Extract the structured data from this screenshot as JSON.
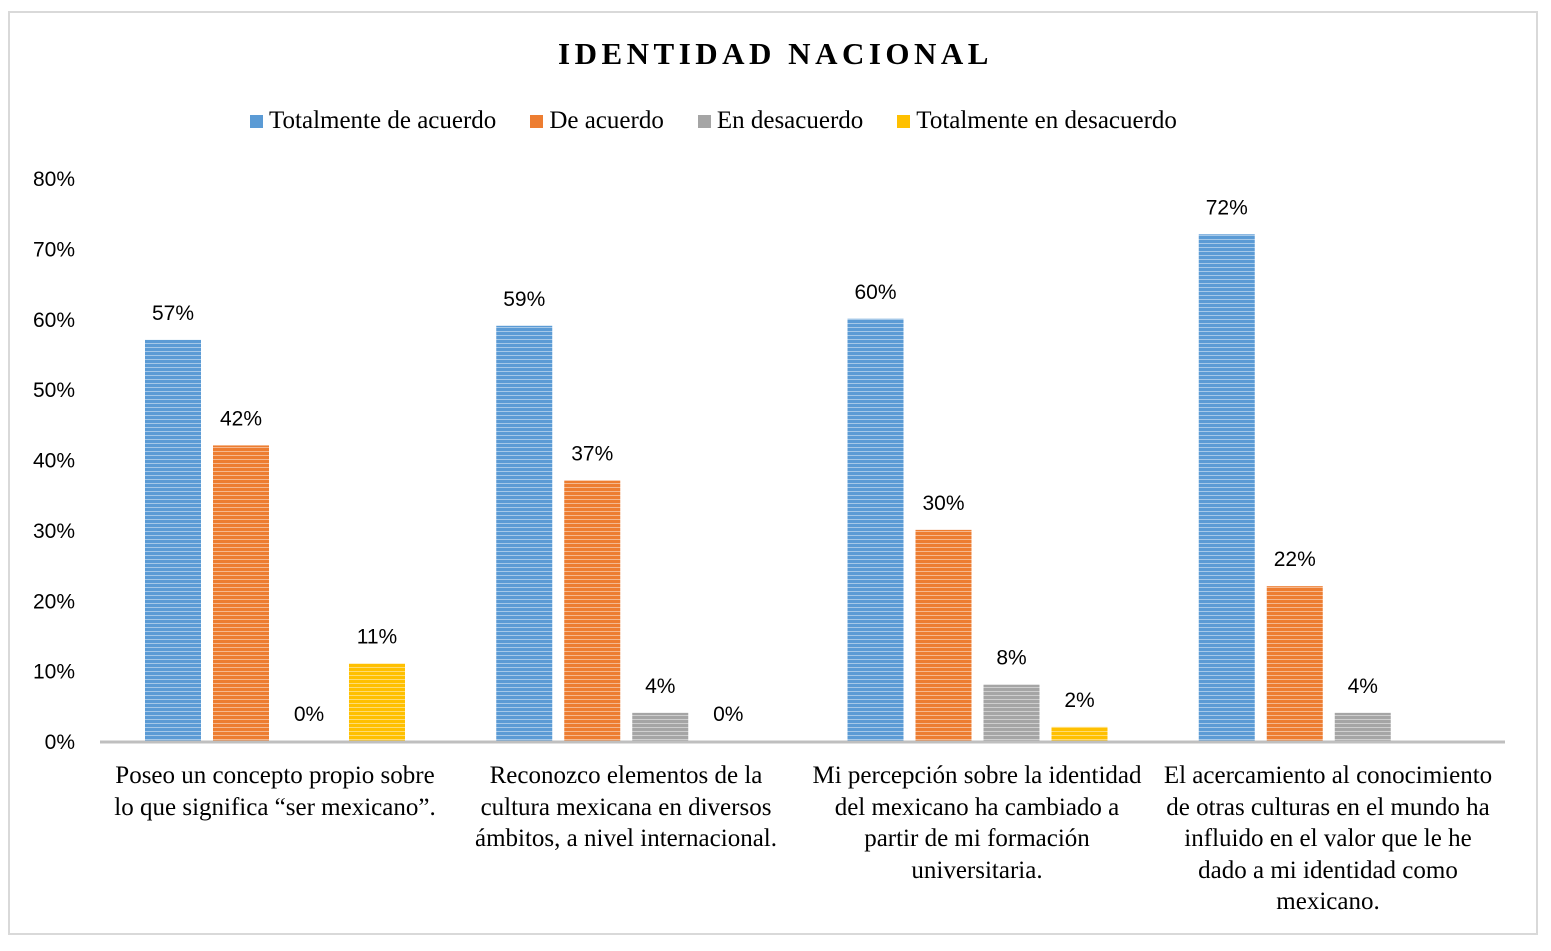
{
  "chart_data": {
    "type": "bar",
    "title": "IDENTIDAD NACIONAL",
    "categories": [
      "Poseo un concepto propio sobre lo que significa “ser mexicano”.",
      "Reconozco elementos de la cultura mexicana en diversos ámbitos, a nivel internacional.",
      "Mi percepción sobre la identidad del mexicano ha cambiado a partir de mi formación universitaria.",
      "El acercamiento al conocimiento de otras culturas en el mundo ha influido en el valor que le he dado a mi identidad como mexicano."
    ],
    "series": [
      {
        "name": "Totalmente de acuerdo",
        "color": "#5b9bd5",
        "values": [
          57,
          59,
          60,
          72
        ],
        "labels": [
          "57%",
          "59%",
          "60%",
          "72%"
        ]
      },
      {
        "name": "De acuerdo",
        "color": "#ed7d31",
        "values": [
          42,
          37,
          30,
          22
        ],
        "labels": [
          "42%",
          "37%",
          "30%",
          "22%"
        ]
      },
      {
        "name": "En desacuerdo",
        "color": "#a5a5a5",
        "values": [
          0,
          4,
          8,
          4
        ],
        "labels": [
          "0%",
          "4%",
          "8%",
          "4%"
        ]
      },
      {
        "name": "Totalmente en desacuerdo",
        "color": "#ffc000",
        "values": [
          11,
          0,
          2,
          null
        ],
        "labels": [
          "11%",
          "0%",
          "2%",
          null
        ]
      }
    ],
    "ylim": [
      0,
      80
    ],
    "yticks": [
      0,
      10,
      20,
      30,
      40,
      50,
      60,
      70,
      80
    ],
    "ytick_labels": [
      "0%",
      "10%",
      "20%",
      "30%",
      "40%",
      "50%",
      "60%",
      "70%",
      "80%"
    ],
    "xlabel": "",
    "ylabel": "",
    "grid": false,
    "legend_position": "top"
  }
}
